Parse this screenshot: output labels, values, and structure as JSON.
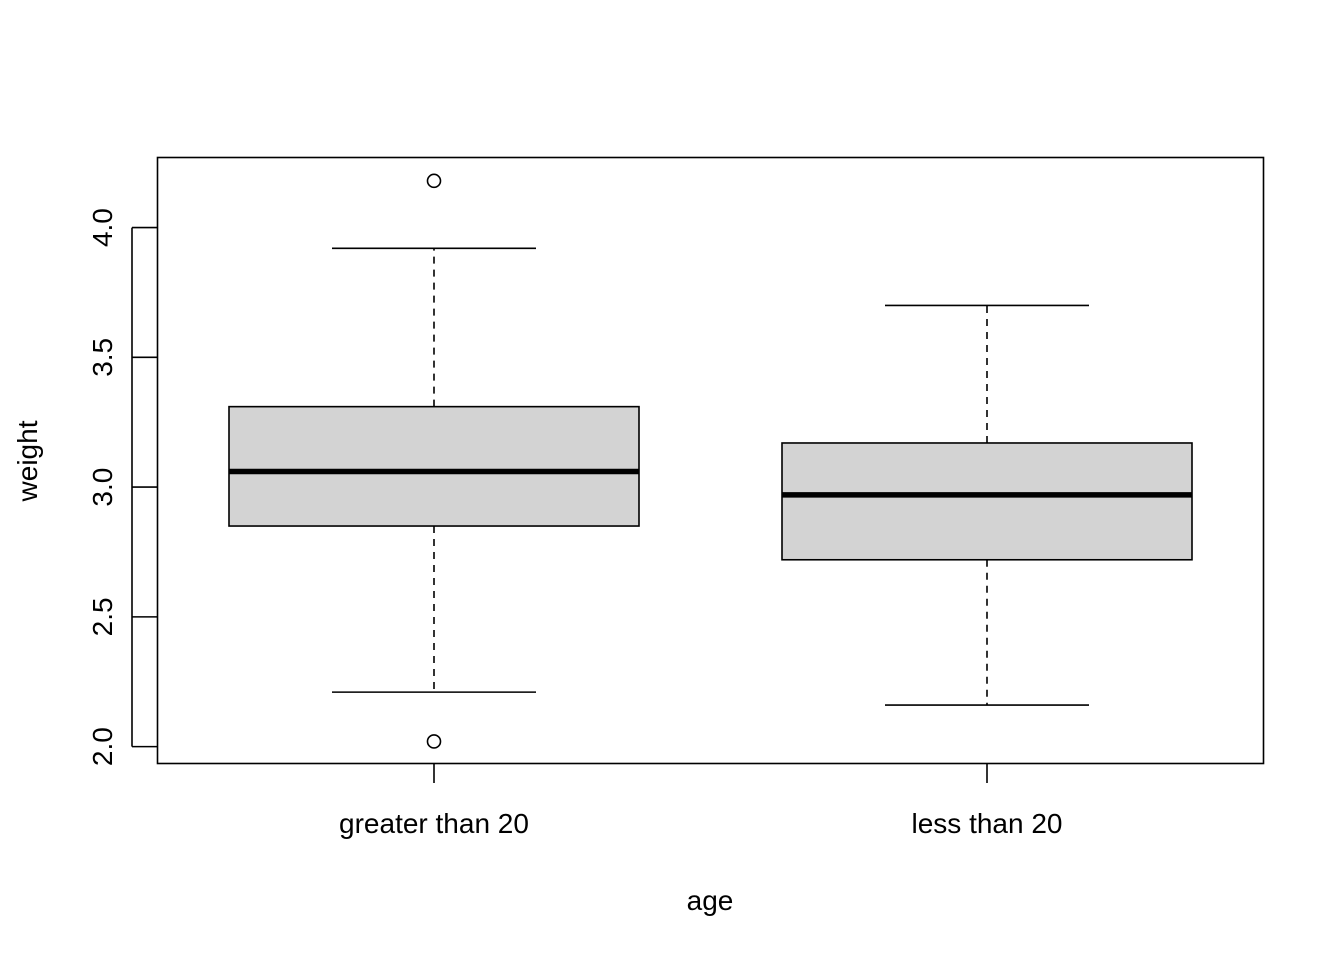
{
  "chart_data": {
    "type": "boxplot",
    "title": "",
    "xlabel": "age",
    "ylabel": "weight",
    "ylim": [
      1.935,
      4.27
    ],
    "y_ticks": [
      "2.0",
      "2.5",
      "3.0",
      "3.5",
      "4.0"
    ],
    "grid": false,
    "categories": [
      "greater than 20",
      "less than 20"
    ],
    "boxes": [
      {
        "category": "greater than 20",
        "whisker_low": 2.21,
        "q1": 2.85,
        "median": 3.06,
        "q3": 3.31,
        "whisker_high": 3.92,
        "outliers": [
          4.18,
          2.02
        ]
      },
      {
        "category": "less than 20",
        "whisker_low": 2.16,
        "q1": 2.72,
        "median": 2.97,
        "q3": 3.17,
        "whisker_high": 3.7,
        "outliers": []
      }
    ],
    "box_fill": "#d3d3d3",
    "line_color": "#000000"
  }
}
